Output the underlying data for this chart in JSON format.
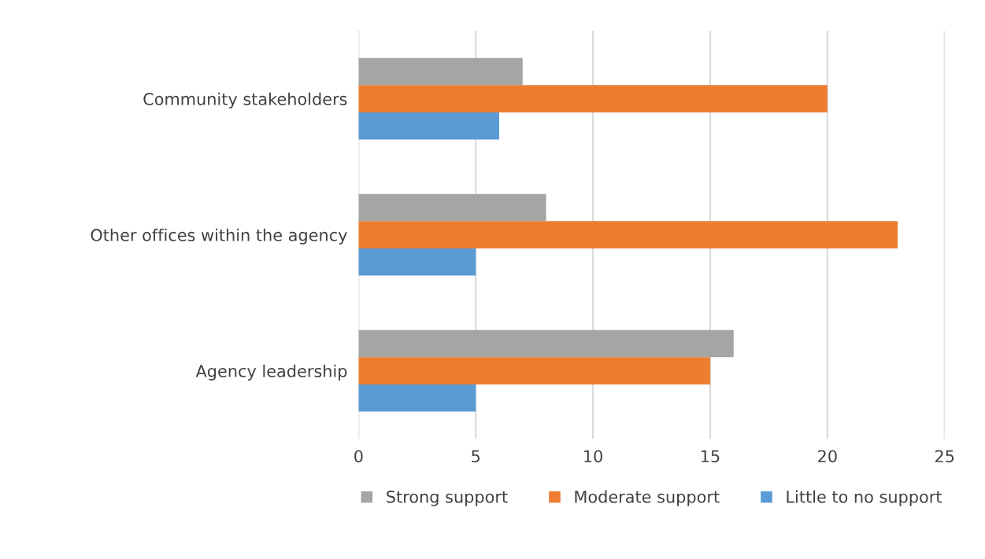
{
  "chart_data": {
    "type": "bar",
    "orientation": "horizontal",
    "categories": [
      "Community stakeholders",
      "Other offices within the agency",
      "Agency leadership"
    ],
    "series": [
      {
        "name": "Strong support",
        "color": "#a5a5a5",
        "values": [
          7,
          8,
          16
        ]
      },
      {
        "name": "Moderate support",
        "color": "#ed7d31",
        "values": [
          20,
          23,
          15
        ]
      },
      {
        "name": "Little to no support",
        "color": "#5b9bd5",
        "values": [
          6,
          5,
          5
        ]
      }
    ],
    "xlim": [
      0,
      25
    ],
    "xticks": [
      0,
      5,
      10,
      15,
      20,
      25
    ],
    "grid": "x",
    "legend": "bottom"
  }
}
